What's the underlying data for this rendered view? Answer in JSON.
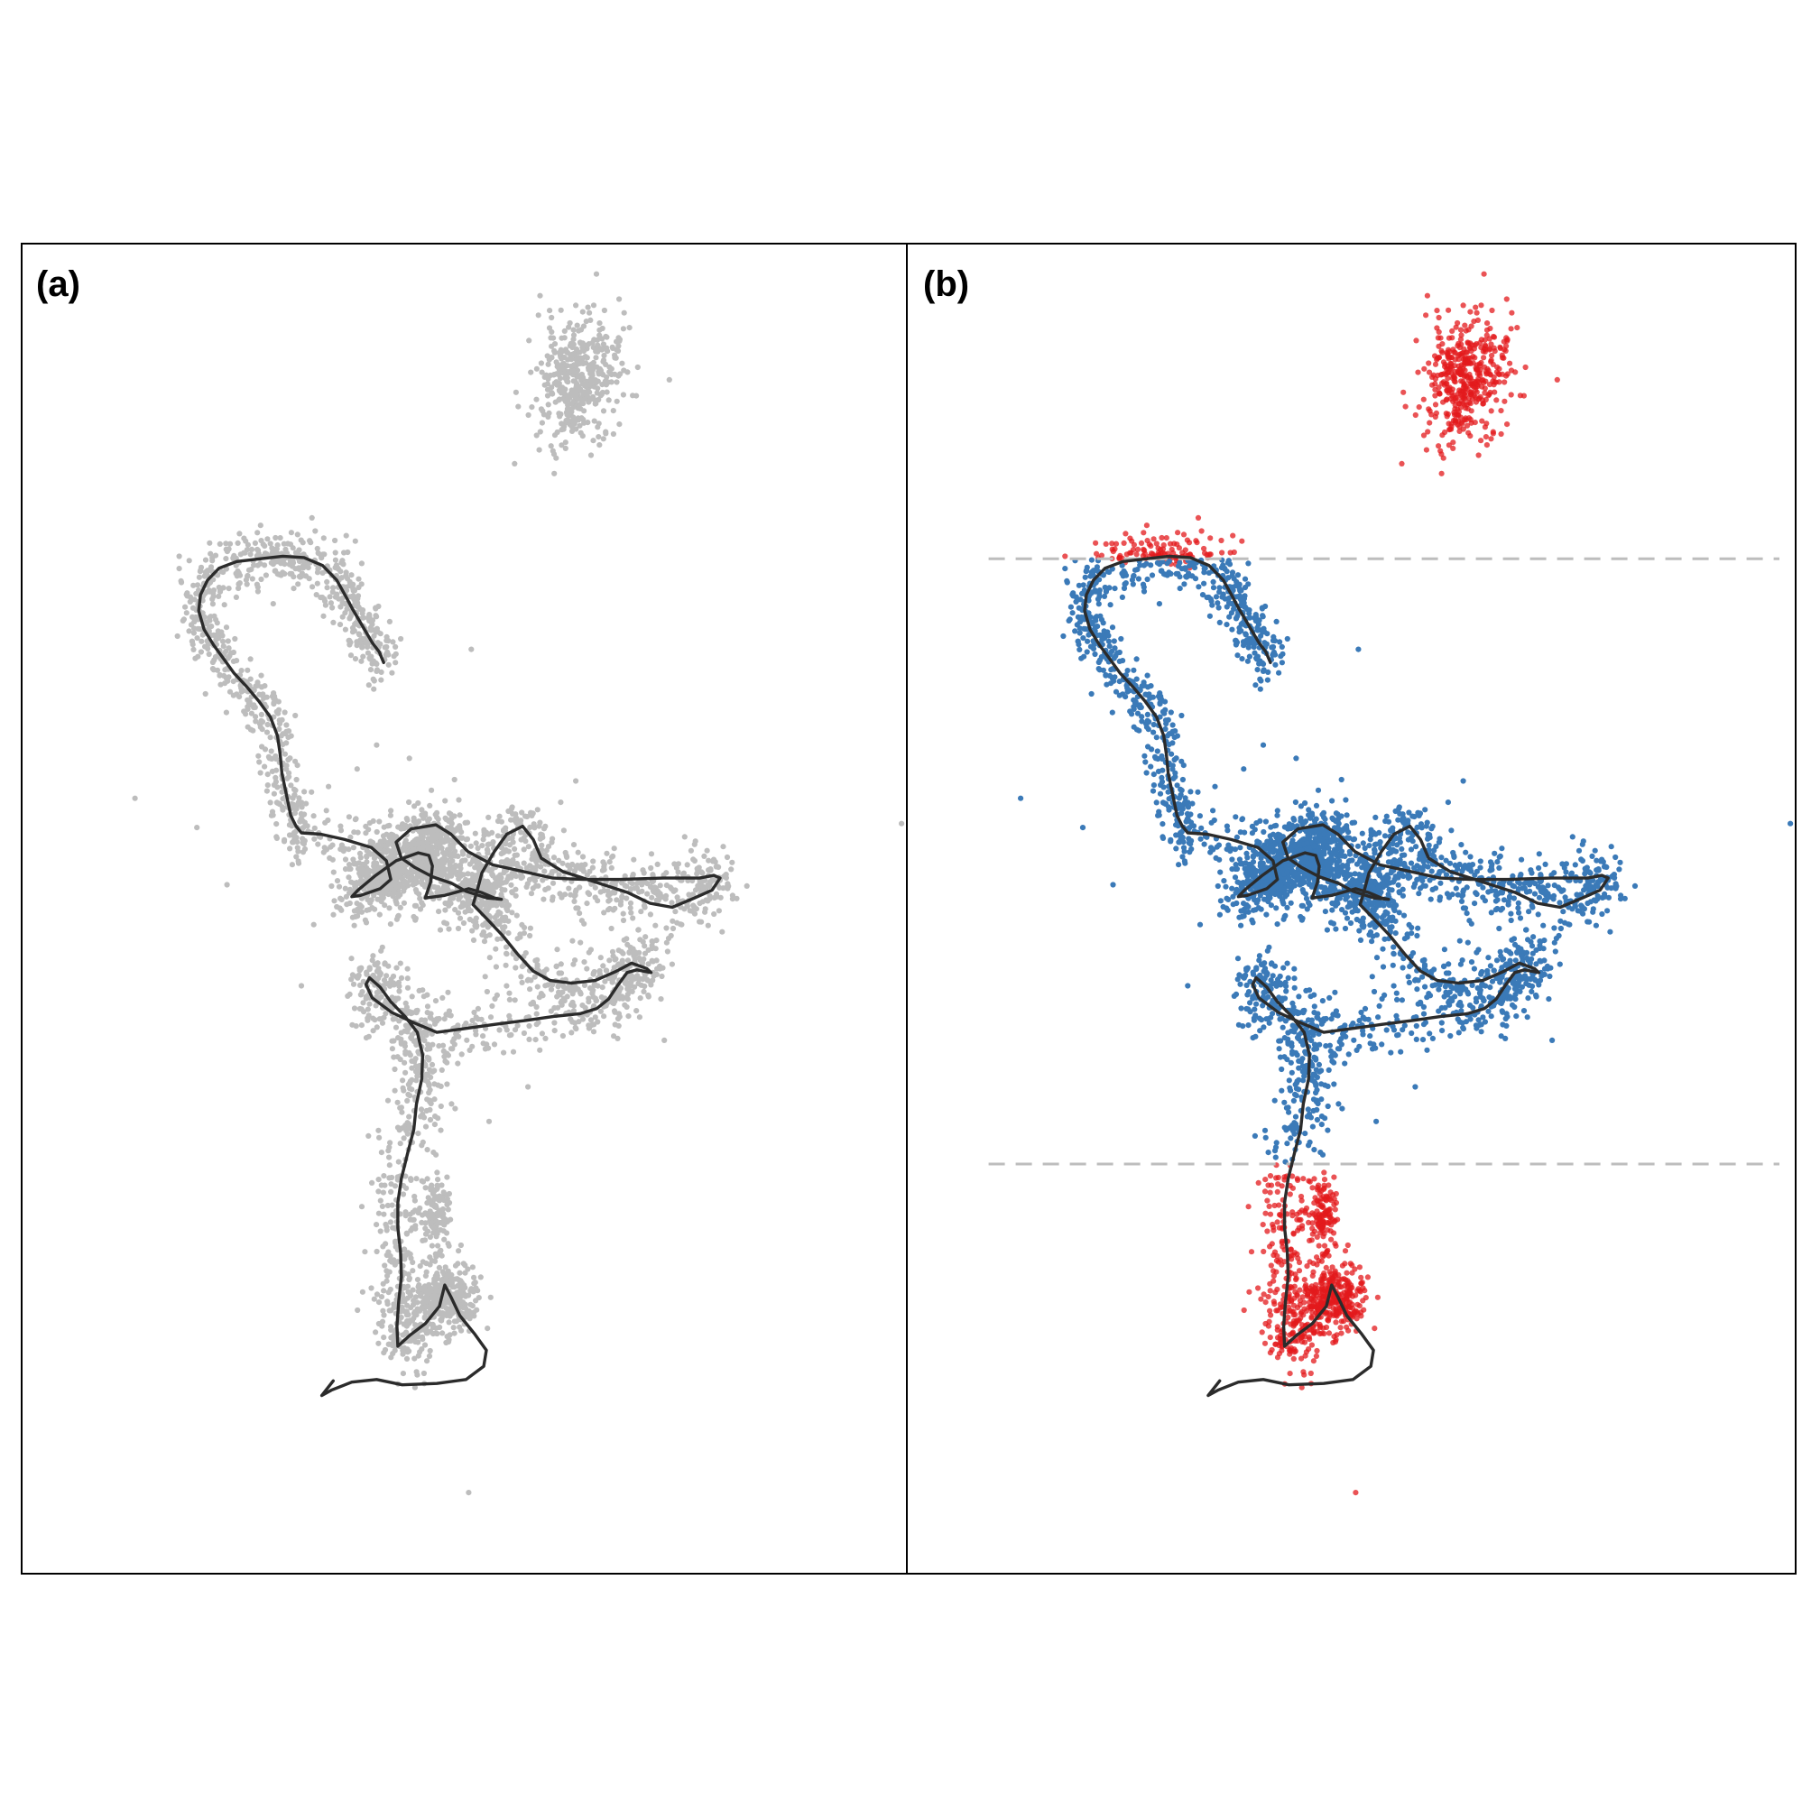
{
  "figure": {
    "panels": [
      {
        "id": "a",
        "label": "(a)"
      },
      {
        "id": "b",
        "label": "(b)"
      }
    ]
  },
  "chart_data": {
    "type": "scatter",
    "xlim": [
      0,
      100
    ],
    "ylim": [
      0,
      100
    ],
    "grid": false,
    "legend": "none",
    "colors": {
      "points_panel_a": "#bdbdbd",
      "inside_band": "#3b7ab8",
      "outside_band": "#e31a1c",
      "track": "#2b2b2b",
      "threshold_line": "#bdbdbd"
    },
    "threshold_y": [
      76.3,
      30.8
    ],
    "track": [
      [
        40.9,
        68.5
      ],
      [
        40.4,
        69.3
      ],
      [
        39.6,
        70.0
      ],
      [
        38.9,
        70.8
      ],
      [
        38.2,
        71.6
      ],
      [
        37.4,
        72.5
      ],
      [
        36.6,
        73.5
      ],
      [
        35.6,
        74.7
      ],
      [
        34.0,
        75.8
      ],
      [
        31.9,
        76.4
      ],
      [
        29.5,
        76.5
      ],
      [
        26.9,
        76.3
      ],
      [
        24.3,
        76.1
      ],
      [
        22.3,
        75.6
      ],
      [
        21.0,
        74.7
      ],
      [
        20.2,
        73.6
      ],
      [
        20.0,
        72.4
      ],
      [
        20.6,
        71.0
      ],
      [
        21.7,
        69.8
      ],
      [
        22.8,
        68.8
      ],
      [
        24.0,
        67.7
      ],
      [
        25.4,
        66.7
      ],
      [
        26.8,
        65.6
      ],
      [
        28.1,
        64.4
      ],
      [
        28.9,
        63.0
      ],
      [
        29.2,
        61.6
      ],
      [
        29.4,
        60.2
      ],
      [
        29.9,
        58.6
      ],
      [
        30.4,
        57.0
      ],
      [
        31.0,
        56.2
      ],
      [
        31.6,
        55.7
      ],
      [
        33.8,
        55.6
      ],
      [
        36.5,
        55.2
      ],
      [
        39.5,
        54.6
      ],
      [
        41.2,
        53.6
      ],
      [
        41.7,
        52.2
      ],
      [
        40.5,
        51.5
      ],
      [
        38.3,
        51.0
      ],
      [
        37.3,
        50.9
      ],
      [
        38.0,
        51.4
      ],
      [
        40.0,
        52.5
      ],
      [
        42.3,
        53.6
      ],
      [
        44.8,
        54.2
      ],
      [
        46.0,
        54.0
      ],
      [
        46.4,
        53.2
      ],
      [
        46.2,
        52.0
      ],
      [
        45.6,
        50.8
      ],
      [
        47.8,
        51.0
      ],
      [
        50.5,
        51.5
      ],
      [
        52.0,
        51.2
      ],
      [
        53.4,
        50.8
      ],
      [
        54.2,
        50.7
      ],
      [
        52.6,
        50.8
      ],
      [
        50.2,
        51.3
      ],
      [
        48.6,
        51.9
      ],
      [
        46.4,
        52.4
      ],
      [
        44.4,
        53.1
      ],
      [
        42.9,
        53.8
      ],
      [
        42.3,
        55.0
      ],
      [
        44.0,
        56.0
      ],
      [
        46.8,
        56.3
      ],
      [
        48.5,
        55.6
      ],
      [
        50.4,
        54.3
      ],
      [
        53.2,
        53.3
      ],
      [
        56.6,
        52.8
      ],
      [
        60.0,
        52.3
      ],
      [
        63.4,
        52.2
      ],
      [
        67.6,
        52.2
      ],
      [
        72.5,
        52.3
      ],
      [
        76.6,
        52.3
      ],
      [
        78.2,
        52.5
      ],
      [
        78.9,
        52.3
      ],
      [
        78.0,
        51.4
      ],
      [
        76.0,
        50.8
      ],
      [
        73.5,
        50.1
      ],
      [
        71.0,
        50.4
      ],
      [
        68.5,
        51.2
      ],
      [
        64.8,
        52.0
      ],
      [
        61.1,
        52.8
      ],
      [
        58.7,
        53.8
      ],
      [
        57.8,
        55.2
      ],
      [
        56.6,
        56.2
      ],
      [
        54.8,
        55.6
      ],
      [
        53.4,
        54.3
      ],
      [
        52.0,
        52.7
      ],
      [
        51.4,
        51.2
      ],
      [
        51.0,
        50.3
      ],
      [
        52.6,
        49.2
      ],
      [
        54.3,
        48.0
      ],
      [
        56.0,
        46.6
      ],
      [
        57.8,
        45.3
      ],
      [
        59.7,
        44.6
      ],
      [
        62.1,
        44.4
      ],
      [
        64.8,
        44.6
      ],
      [
        67.2,
        45.3
      ],
      [
        68.9,
        45.9
      ],
      [
        70.6,
        45.5
      ],
      [
        71.1,
        45.2
      ],
      [
        69.5,
        45.4
      ],
      [
        68.4,
        45.2
      ],
      [
        67.3,
        44.2
      ],
      [
        66.3,
        43.2
      ],
      [
        65.0,
        42.5
      ],
      [
        63.1,
        42.1
      ],
      [
        60.1,
        41.9
      ],
      [
        57.0,
        41.6
      ],
      [
        53.5,
        41.3
      ],
      [
        50.2,
        41.0
      ],
      [
        46.9,
        40.7
      ],
      [
        44.4,
        41.4
      ],
      [
        41.8,
        42.2
      ],
      [
        39.6,
        43.3
      ],
      [
        38.9,
        44.3
      ],
      [
        39.3,
        44.8
      ],
      [
        40.5,
        44.1
      ],
      [
        41.7,
        43.0
      ],
      [
        43.3,
        41.9
      ],
      [
        44.7,
        40.7
      ],
      [
        45.3,
        39.0
      ],
      [
        45.2,
        37.2
      ],
      [
        44.6,
        35.3
      ],
      [
        44.3,
        33.4
      ],
      [
        43.6,
        31.6
      ],
      [
        42.9,
        29.7
      ],
      [
        42.5,
        27.9
      ],
      [
        42.5,
        26.0
      ],
      [
        42.8,
        24.2
      ],
      [
        42.9,
        22.3
      ],
      [
        42.6,
        20.5
      ],
      [
        42.4,
        18.6
      ],
      [
        42.5,
        17.1
      ],
      [
        43.8,
        17.9
      ],
      [
        45.6,
        18.8
      ],
      [
        47.2,
        20.1
      ],
      [
        47.8,
        21.7
      ],
      [
        48.5,
        20.8
      ],
      [
        49.5,
        19.4
      ],
      [
        51.2,
        18.0
      ],
      [
        52.5,
        16.8
      ],
      [
        52.2,
        15.6
      ],
      [
        50.2,
        14.6
      ],
      [
        46.9,
        14.3
      ],
      [
        43.0,
        14.2
      ],
      [
        40.1,
        14.6
      ],
      [
        37.3,
        14.4
      ],
      [
        35.0,
        13.8
      ],
      [
        33.9,
        13.4
      ],
      [
        35.2,
        14.5
      ]
    ],
    "clusters": [
      {
        "cx": 62.9,
        "cy": 89.6,
        "rx": 4.5,
        "ry": 5.2,
        "rot": -58,
        "n": 430,
        "panel_b": "outside"
      },
      {
        "cx": 29.6,
        "cy": 76.4,
        "rx": 3.0,
        "ry": 0.6,
        "rot": 0,
        "n": 40,
        "panel_b": "outside_top"
      },
      {
        "track": true,
        "from": 0,
        "to": 25,
        "spread": 1.2,
        "n": 650
      },
      {
        "track": true,
        "from": 25,
        "to": 115,
        "spread": 1.3,
        "n": 2100
      },
      {
        "track": true,
        "from": 115,
        "to": 137,
        "spread": 1.5,
        "n": 600
      },
      {
        "cx": 46.9,
        "cy": 27.0,
        "rx": 1.5,
        "ry": 3.0,
        "rot": 0,
        "n": 120
      },
      {
        "cx": 47.9,
        "cy": 20.5,
        "rx": 3.5,
        "ry": 2.3,
        "rot": 0,
        "n": 220
      },
      {
        "cx": 45.9,
        "cy": 54.5,
        "rx": 4.0,
        "ry": 2.5,
        "rot": 0,
        "n": 220
      },
      {
        "cx": 41.2,
        "cy": 52.0,
        "rx": 3.0,
        "ry": 1.6,
        "rot": 0,
        "n": 140
      }
    ],
    "outliers": [
      [
        12.8,
        58.3
      ],
      [
        19.8,
        56.1
      ],
      [
        23.2,
        51.8
      ],
      [
        50.8,
        69.5
      ],
      [
        40.1,
        62.3
      ],
      [
        48.9,
        59.7
      ],
      [
        37.9,
        60.5
      ],
      [
        43.8,
        61.3
      ],
      [
        62.6,
        59.6
      ],
      [
        55.9,
        56.8
      ],
      [
        53.1,
        51.6
      ],
      [
        42.4,
        49.2
      ],
      [
        70.2,
        47.5
      ],
      [
        63.4,
        53.9
      ],
      [
        57.2,
        36.6
      ],
      [
        72.6,
        40.1
      ],
      [
        99.4,
        56.4
      ],
      [
        60.9,
        58.0
      ],
      [
        52.8,
        34.0
      ],
      [
        50.5,
        6.1
      ],
      [
        33.0,
        48.8
      ],
      [
        31.6,
        44.2
      ],
      [
        47.3,
        48.4
      ],
      [
        74.9,
        55.4
      ]
    ]
  }
}
